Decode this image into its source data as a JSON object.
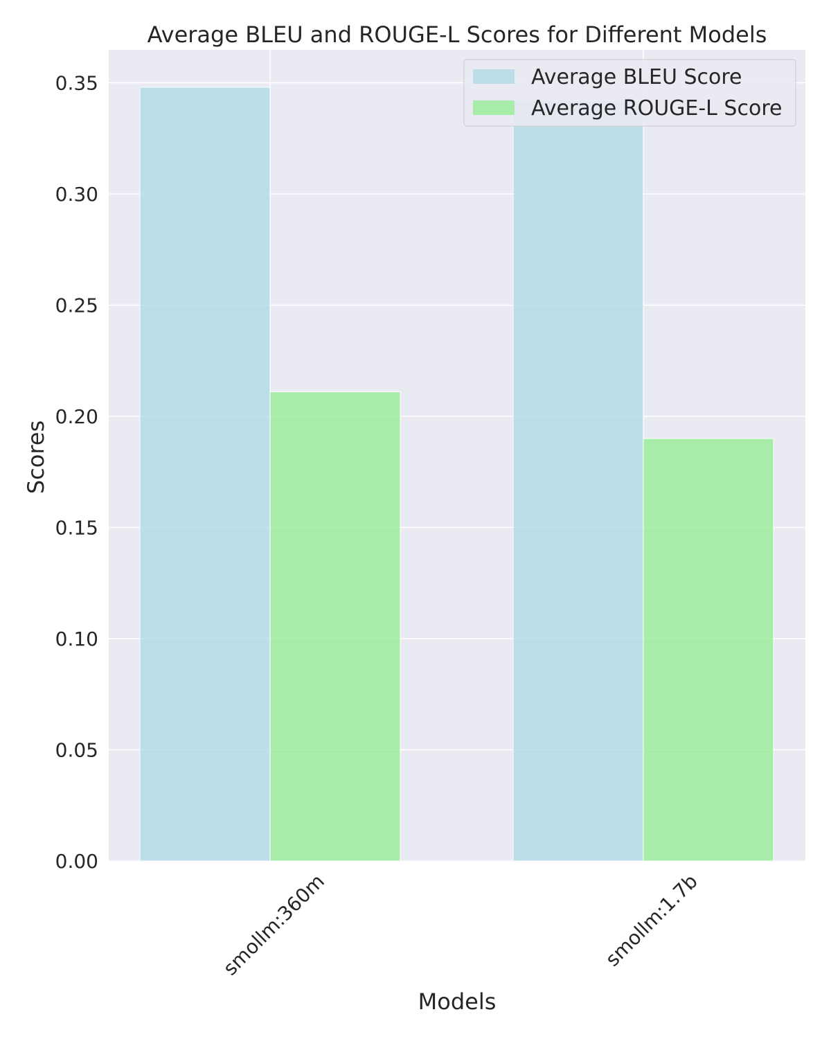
{
  "chart_data": {
    "type": "bar",
    "title": "Average BLEU and ROUGE-L Scores for Different Models",
    "xlabel": "Models",
    "ylabel": "Scores",
    "categories": [
      "smollm:360m",
      "smollm:1.7b"
    ],
    "series": [
      {
        "name": "Average BLEU Score",
        "values": [
          0.348,
          0.342
        ],
        "color": "#add8e6"
      },
      {
        "name": "Average ROUGE-L Score",
        "values": [
          0.211,
          0.19
        ],
        "color": "#90ee90"
      }
    ],
    "ylim": [
      0,
      0.365
    ],
    "yticks": [
      "0.00",
      "0.05",
      "0.10",
      "0.15",
      "0.20",
      "0.25",
      "0.30",
      "0.35"
    ],
    "grid": true,
    "legend_position": "top-right",
    "background_color": "#eaeaf2"
  }
}
